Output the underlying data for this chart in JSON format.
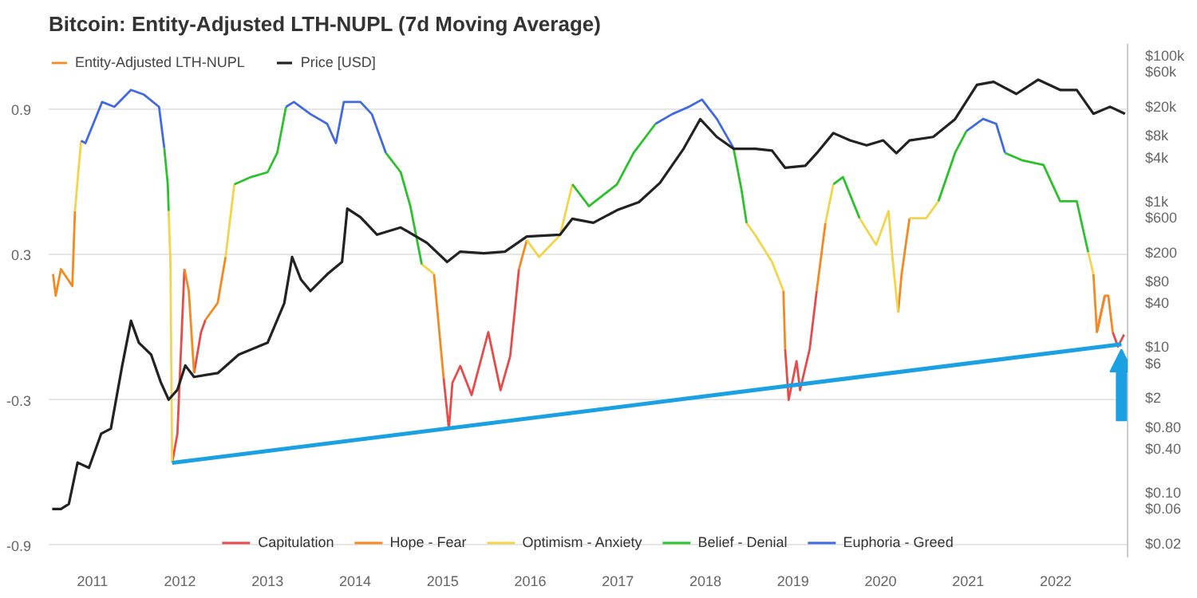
{
  "chart_data": {
    "type": "line",
    "title": "Bitcoin: Entity-Adjusted LTH-NUPL (7d Moving Average)",
    "legend_title": "Entity-Adjusted LTH-NUPL",
    "series": [
      {
        "name": "Capitulation",
        "color": "#e84a4a",
        "x": [
          2011.91,
          2011.97,
          2012.05,
          2012.1,
          2012.16,
          2012.24,
          2012.29,
          2012.43,
          2015.01,
          2015.07,
          2015.11,
          2015.2,
          2015.33,
          2015.52,
          2015.66,
          2015.77,
          2015.87,
          2015.96,
          2018.91,
          2018.95,
          2019.04,
          2019.08,
          2019.19,
          2019.27,
          2019.37,
          2022.47,
          2022.56,
          2022.6,
          2022.65,
          2022.71,
          2022.78
        ],
        "values": [
          -0.56,
          -0.44,
          0.24,
          null,
          -0.19,
          -0.02,
          0.03,
          null,
          -0.21,
          -0.42,
          -0.23,
          -0.16,
          -0.28,
          -0.02,
          -0.26,
          -0.12,
          0.24,
          null,
          -0.09,
          -0.3,
          -0.14,
          -0.26,
          -0.09,
          0.15,
          null,
          -0.02,
          0.13,
          null,
          -0.02,
          -0.08,
          -0.03
        ]
      },
      {
        "name": "Hope - Fear",
        "color": "#f5891f",
        "x": [
          2010.55,
          2010.58,
          2010.64,
          2010.77,
          2010.8,
          2010.87,
          2012.05,
          2012.1,
          2012.16,
          2012.24,
          2012.29,
          2012.43,
          2012.52,
          2012.62,
          2014.9,
          2015.01,
          2015.07,
          2015.87,
          2015.96,
          2016.1,
          2018.89,
          2018.91,
          2018.95,
          2019.27,
          2019.37,
          2019.46,
          2020.2,
          2020.24,
          2020.33,
          2020.52,
          2022.43,
          2022.47,
          2022.56,
          2022.6,
          2022.65
        ],
        "values": [
          0.22,
          0.13,
          0.24,
          0.17,
          0.48,
          null,
          0.24,
          0.15,
          -0.19,
          null,
          0.03,
          0.1,
          0.29,
          null,
          0.22,
          -0.21,
          null,
          0.24,
          0.36,
          null,
          0.15,
          -0.09,
          null,
          0.15,
          0.43,
          null,
          0.06,
          0.22,
          0.45,
          null,
          0.22,
          -0.02,
          0.13,
          0.13,
          -0.02
        ]
      },
      {
        "name": "Optimism - Anxiety",
        "color": "#f2d54a",
        "x": [
          2010.8,
          2010.87,
          2010.92,
          2011.87,
          2011.89,
          2011.91,
          2011.97,
          2012.52,
          2012.62,
          2012.81,
          2014.76,
          2014.9,
          2015.01,
          2015.96,
          2016.1,
          2016.34,
          2016.48,
          2016.67,
          2018.47,
          2018.57,
          2018.76,
          2018.89,
          2018.91,
          2019.37,
          2019.46,
          2019.57,
          2019.76,
          2019.95,
          2020.09,
          2020.14,
          2020.2,
          2020.24,
          2020.33,
          2020.52,
          2020.66,
          2020.85,
          2022.37,
          2022.43
        ],
        "values": [
          0.48,
          0.77,
          null,
          0.48,
          0.27,
          -0.56,
          null,
          0.29,
          0.59,
          null,
          0.26,
          0.22,
          null,
          0.36,
          0.29,
          0.38,
          0.59,
          null,
          0.43,
          0.38,
          0.27,
          0.15,
          null,
          0.43,
          0.59,
          null,
          0.45,
          0.34,
          0.48,
          0.27,
          0.06,
          null,
          0.45,
          0.45,
          0.52,
          null,
          0.31,
          0.22
        ]
      },
      {
        "name": "Belief - Denial",
        "color": "#2cc12c",
        "x": [
          2011.82,
          2011.86,
          2011.87,
          2011.89,
          2012.62,
          2012.81,
          2013,
          2013.11,
          2013.21,
          2013.3,
          2014.35,
          2014.52,
          2014.63,
          2014.76,
          2014.9,
          2016.48,
          2016.67,
          2016.99,
          2017.18,
          2017.43,
          2017.62,
          2018.32,
          2018.41,
          2018.47,
          2018.57,
          2019.46,
          2019.57,
          2019.76,
          2019.95,
          2020.66,
          2020.85,
          2020.98,
          2021.17,
          2021.42,
          2021.61,
          2021.86,
          2022.05,
          2022.24,
          2022.37
        ],
        "values": [
          0.74,
          0.59,
          0.48,
          null,
          0.59,
          0.62,
          0.64,
          0.72,
          0.91,
          null,
          0.72,
          0.64,
          0.5,
          0.26,
          null,
          0.59,
          0.5,
          0.59,
          0.72,
          0.84,
          null,
          0.74,
          0.57,
          0.43,
          null,
          0.59,
          0.62,
          0.45,
          null,
          0.52,
          0.72,
          0.81,
          null,
          0.72,
          0.69,
          0.67,
          0.52,
          0.52,
          0.31
        ]
      },
      {
        "name": "Euphoria - Greed",
        "color": "#4169e1",
        "x": [
          2010.87,
          2010.92,
          2011.11,
          2011.25,
          2011.44,
          2011.59,
          2011.76,
          2011.82,
          2011.86,
          2013.21,
          2013.3,
          2013.49,
          2013.68,
          2013.78,
          2013.87,
          2014.06,
          2014.19,
          2014.35,
          2014.52,
          2017.43,
          2017.62,
          2017.81,
          2017.96,
          2018.13,
          2018.32,
          2018.41,
          2020.98,
          2021.17,
          2021.32,
          2021.42
        ],
        "values": [
          0.77,
          0.76,
          0.93,
          0.91,
          0.98,
          0.96,
          0.91,
          0.74,
          null,
          0.91,
          0.93,
          0.88,
          0.84,
          0.76,
          0.93,
          0.93,
          0.88,
          0.72,
          null,
          0.84,
          0.88,
          0.91,
          0.94,
          0.86,
          0.74,
          null,
          0.81,
          0.86,
          0.84,
          0.72
        ]
      },
      {
        "name": "Price [USD]",
        "color": "#222222",
        "axis": "y2",
        "x": [
          2010.54,
          2010.64,
          2010.73,
          2010.83,
          2010.96,
          2011.1,
          2011.21,
          2011.34,
          2011.44,
          2011.53,
          2011.67,
          2011.78,
          2011.87,
          2011.97,
          2012.06,
          2012.16,
          2012.43,
          2012.67,
          2013.0,
          2013.19,
          2013.28,
          2013.38,
          2013.49,
          2013.68,
          2013.85,
          2013.91,
          2014.06,
          2014.25,
          2014.52,
          2014.82,
          2015.05,
          2015.2,
          2015.47,
          2015.71,
          2015.96,
          2016.34,
          2016.48,
          2016.72,
          2016.99,
          2017.24,
          2017.48,
          2017.75,
          2017.94,
          2018.13,
          2018.32,
          2018.57,
          2018.76,
          2018.91,
          2019.14,
          2019.27,
          2019.46,
          2019.65,
          2019.84,
          2020.03,
          2020.18,
          2020.33,
          2020.6,
          2020.85,
          2021.1,
          2021.29,
          2021.55,
          2021.8,
          2022.05,
          2022.24,
          2022.43,
          2022.62,
          2022.79
        ],
        "values": [
          0.06,
          0.06,
          0.07,
          0.26,
          0.22,
          0.65,
          0.76,
          5.6,
          23,
          11.5,
          7.9,
          3.3,
          1.9,
          2.6,
          5.6,
          3.9,
          4.4,
          7.9,
          11.5,
          40,
          173,
          85,
          59,
          100,
          148,
          800,
          610,
          350,
          440,
          270,
          148,
          205,
          195,
          205,
          330,
          350,
          580,
          510,
          760,
          980,
          1800,
          5300,
          13500,
          7700,
          5300,
          5300,
          5000,
          2900,
          3100,
          4600,
          8700,
          6900,
          5900,
          6900,
          4600,
          6900,
          7700,
          13500,
          40000,
          44000,
          30000,
          47000,
          34000,
          34000,
          16000,
          20000,
          16000
        ]
      },
      {
        "color": "#1ba1e2",
        "x": [
          2011.91,
          2022.75
        ],
        "values": [
          -0.56,
          -0.07
        ]
      }
    ],
    "xlim": [
      2010.5,
      2022.82
    ],
    "xticks": [
      2011,
      2012,
      2013,
      2014,
      2015,
      2016,
      2017,
      2018,
      2019,
      2020,
      2021,
      2022
    ],
    "ylim": [
      -0.95,
      1.17
    ],
    "yticks": [
      0.9,
      0.3,
      -0.3,
      -0.9
    ],
    "log": "y2",
    "y2lim": [
      0.013,
      146000
    ],
    "y2ticks": [
      {
        "value": 100000,
        "label": "$100k"
      },
      {
        "value": 60000,
        "label": "$60k"
      },
      {
        "value": 20000,
        "label": "$20k"
      },
      {
        "value": 8000,
        "label": "$8k"
      },
      {
        "value": 4000,
        "label": "$4k"
      },
      {
        "value": 1000,
        "label": "$1k"
      },
      {
        "value": 600,
        "label": "$600"
      },
      {
        "value": 200,
        "label": "$200"
      },
      {
        "value": 80,
        "label": "$80"
      },
      {
        "value": 40,
        "label": "$40"
      },
      {
        "value": 10,
        "label": "$10"
      },
      {
        "value": 6,
        "label": "$6"
      },
      {
        "value": 2,
        "label": "$2"
      },
      {
        "value": 0.8,
        "label": "$0.80"
      },
      {
        "value": 0.4,
        "label": "$0.40"
      },
      {
        "value": 0.1,
        "label": "$0.10"
      },
      {
        "value": 0.06,
        "label": "$0.06"
      },
      {
        "value": 0.02,
        "label": "$0.02"
      }
    ],
    "grid": "y",
    "legend": "bottom"
  }
}
